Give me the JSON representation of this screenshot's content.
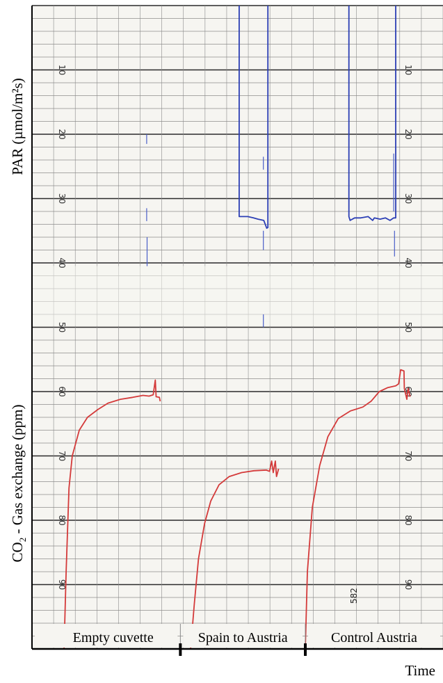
{
  "chart_data": {
    "type": "line",
    "title": "",
    "xlabel": "Time",
    "ylabels": {
      "upper": "PAR (µmol/m²s)",
      "lower_prefix": "CO",
      "lower_sub": "2",
      "lower_suffix": " - Gas exchange (ppm)"
    },
    "grid": true,
    "y_ticks": [
      "10",
      "20",
      "30",
      "40",
      "50",
      "60",
      "70",
      "80",
      "90"
    ],
    "ylim": [
      0,
      100
    ],
    "xlim": [
      0,
      100
    ],
    "segments": [
      "Empty cuvette",
      "Spain to Austria",
      "Control Austria"
    ],
    "segment_boundaries": [
      36.1,
      66.5
    ],
    "stamp": "582",
    "series": [
      {
        "name": "PAR",
        "color": "#2c3fb5",
        "points": [
          [
            50.4,
            0
          ],
          [
            50.4,
            32.8
          ],
          [
            52.5,
            32.8
          ],
          [
            53.9,
            33.0
          ],
          [
            55.0,
            33.2
          ],
          [
            56.4,
            33.4
          ],
          [
            57.1,
            34.6
          ],
          [
            57.4,
            34.5
          ],
          [
            57.4,
            0
          ],
          [
            null,
            null
          ],
          [
            77.1,
            0
          ],
          [
            77.1,
            32.8
          ],
          [
            77.4,
            33.4
          ],
          [
            78.5,
            33.0
          ],
          [
            80.0,
            33.0
          ],
          [
            81.8,
            32.8
          ],
          [
            82.9,
            33.4
          ],
          [
            83.3,
            33.0
          ],
          [
            84.7,
            33.2
          ],
          [
            86.0,
            33.0
          ],
          [
            87.1,
            33.4
          ],
          [
            88.0,
            33.0
          ],
          [
            88.5,
            33.0
          ],
          [
            88.5,
            0
          ]
        ]
      },
      {
        "name": "PAR spikes",
        "color": "#4a5ec8",
        "points": [
          [
            27.9,
            20.0
          ],
          [
            27.9,
            21.5
          ],
          [
            null,
            null
          ],
          [
            27.9,
            31.5
          ],
          [
            27.9,
            33.5
          ],
          [
            null,
            null
          ],
          [
            28.0,
            36.0
          ],
          [
            28.0,
            40.5
          ],
          [
            null,
            null
          ],
          [
            56.3,
            23.5
          ],
          [
            56.3,
            25.5
          ],
          [
            null,
            null
          ],
          [
            56.3,
            35.0
          ],
          [
            56.3,
            38.0
          ],
          [
            null,
            null
          ],
          [
            56.3,
            48.0
          ],
          [
            56.3,
            50.0
          ],
          [
            null,
            null
          ],
          [
            88.0,
            23.0
          ],
          [
            88.0,
            32.0
          ],
          [
            null,
            null
          ],
          [
            88.2,
            35.0
          ],
          [
            88.2,
            39.0
          ]
        ]
      },
      {
        "name": "CO2",
        "color": "#d43a3a",
        "points": [
          [
            7.8,
            100
          ],
          [
            8.3,
            88.0
          ],
          [
            9.0,
            75.0
          ],
          [
            9.8,
            70.0
          ],
          [
            11.5,
            66.0
          ],
          [
            13.5,
            64.0
          ],
          [
            16.0,
            62.8
          ],
          [
            18.5,
            61.8
          ],
          [
            21.5,
            61.2
          ],
          [
            24.5,
            60.9
          ],
          [
            27.0,
            60.6
          ],
          [
            28.5,
            60.7
          ],
          [
            29.5,
            60.5
          ],
          [
            30.0,
            58.2
          ],
          [
            30.2,
            60.8
          ],
          [
            31.0,
            60.9
          ],
          [
            31.2,
            61.5
          ],
          [
            null,
            null
          ],
          [
            38.6,
            100
          ],
          [
            39.5,
            93.0
          ],
          [
            40.5,
            86.0
          ],
          [
            42.0,
            80.5
          ],
          [
            43.5,
            77.0
          ],
          [
            45.5,
            74.5
          ],
          [
            48.0,
            73.2
          ],
          [
            51.0,
            72.6
          ],
          [
            54.0,
            72.3
          ],
          [
            57.0,
            72.2
          ],
          [
            57.8,
            72.4
          ],
          [
            58.3,
            70.8
          ],
          [
            58.7,
            72.6
          ],
          [
            59.2,
            70.8
          ],
          [
            59.5,
            73.2
          ],
          [
            60.0,
            72.0
          ],
          [
            null,
            null
          ],
          [
            66.5,
            100
          ],
          [
            67.0,
            88.0
          ],
          [
            68.2,
            78.0
          ],
          [
            70.0,
            71.5
          ],
          [
            72.0,
            67.0
          ],
          [
            74.5,
            64.2
          ],
          [
            77.5,
            63.0
          ],
          [
            80.5,
            62.4
          ],
          [
            82.5,
            61.5
          ],
          [
            84.5,
            60.0
          ],
          [
            86.5,
            59.4
          ],
          [
            88.5,
            59.1
          ],
          [
            89.2,
            58.8
          ],
          [
            89.7,
            56.6
          ],
          [
            90.5,
            56.8
          ],
          [
            90.6,
            59.5
          ],
          [
            91.2,
            61.2
          ],
          [
            91.5,
            59.5
          ],
          [
            92.0,
            60.8
          ]
        ]
      }
    ]
  }
}
